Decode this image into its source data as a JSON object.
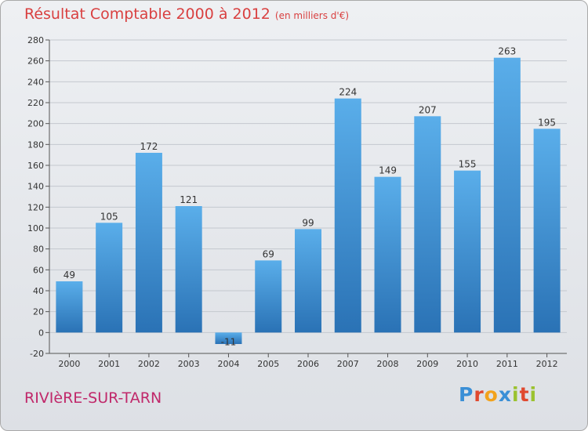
{
  "title": "Résultat Comptable 2000 à 2012",
  "subtitle": "(en milliers d'€)",
  "city": "RIVIèRE-SUR-TARN",
  "logo": {
    "text": "Proxiti",
    "letters": [
      {
        "ch": "P",
        "color": "#3a8fd6"
      },
      {
        "ch": "r",
        "color": "#e0492f"
      },
      {
        "ch": "o",
        "color": "#f2a21c"
      },
      {
        "ch": "x",
        "color": "#3a8fd6"
      },
      {
        "ch": "i",
        "color": "#9bc22f"
      },
      {
        "ch": "t",
        "color": "#e0492f"
      },
      {
        "ch": "i",
        "color": "#9bc22f"
      }
    ]
  },
  "colors": {
    "title": "#d94040",
    "city": "#c0286a",
    "bar_top": "#5aaeea",
    "bar_bottom": "#2a72b5",
    "grid": "#c4c8cf"
  },
  "chart_data": {
    "type": "bar",
    "categories": [
      "2000",
      "2001",
      "2002",
      "2003",
      "2004",
      "2005",
      "2006",
      "2007",
      "2008",
      "2009",
      "2010",
      "2011",
      "2012"
    ],
    "values": [
      49,
      105,
      172,
      121,
      -11,
      69,
      99,
      224,
      149,
      207,
      155,
      263,
      195
    ],
    "value_labels": [
      "49",
      "105",
      "172",
      "121",
      "-11",
      "69",
      "99",
      "224",
      "149",
      "207",
      "155",
      "263",
      "195"
    ],
    "ylim": [
      -20,
      280
    ],
    "yticks": [
      -20,
      0,
      20,
      40,
      60,
      80,
      100,
      120,
      140,
      160,
      180,
      200,
      220,
      240,
      260,
      280
    ],
    "grid": true,
    "xlabel": "",
    "ylabel": ""
  }
}
